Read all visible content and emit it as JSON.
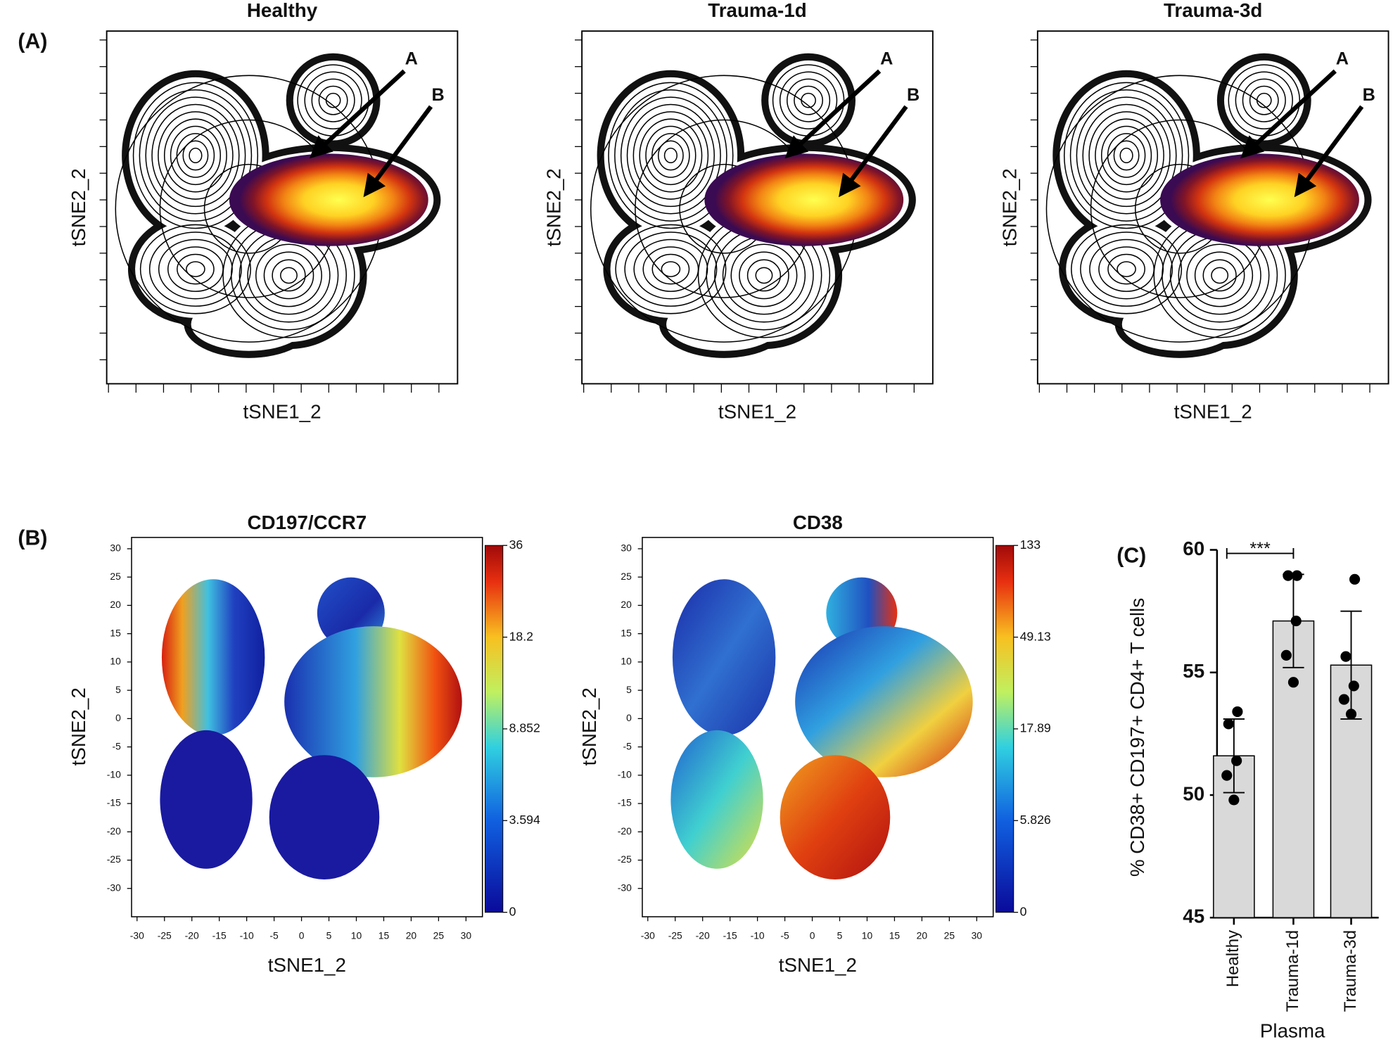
{
  "panel_labels": [
    "(A)",
    "(B)",
    "(C)"
  ],
  "panel_a": {
    "x_label": "tSNE1_2",
    "y_label": "tSNE2_2",
    "plots": [
      {
        "title": "Healthy",
        "arrow_labels": [
          "A",
          "B"
        ]
      },
      {
        "title": "Trauma-1d",
        "arrow_labels": [
          "A",
          "B"
        ]
      },
      {
        "title": "Trauma-3d",
        "arrow_labels": [
          "A",
          "B"
        ]
      }
    ]
  },
  "panel_b": {
    "x_label": "tSNE1_2",
    "y_label": "tSNE2_2",
    "xlim": [
      -31,
      33
    ],
    "ylim": [
      -35,
      32
    ],
    "xticks": [
      -30,
      -25,
      -20,
      -15,
      -10,
      -5,
      0,
      5,
      10,
      15,
      20,
      25,
      30
    ],
    "yticks": [
      -30,
      -25,
      -20,
      -15,
      -10,
      -5,
      0,
      5,
      10,
      15,
      20,
      25,
      30
    ],
    "plots": [
      {
        "title": "CD197/CCR7",
        "colorbar_ticks": [
          36,
          18.2,
          8.852,
          3.594,
          0
        ]
      },
      {
        "title": "CD38",
        "colorbar_ticks": [
          133,
          49.13,
          17.89,
          5.826,
          0
        ]
      }
    ]
  },
  "chart_data": {
    "type": "bar",
    "y_label": "% CD38+ CD197+ CD4+ T cells",
    "x_label": "Plasma",
    "categories": [
      "Healthy",
      "Trauma-1d",
      "Trauma-3d"
    ],
    "values": [
      51.6,
      57.1,
      55.3
    ],
    "errors": [
      1.5,
      1.9,
      2.2
    ],
    "points": [
      [
        53.4,
        52.9,
        51.4,
        50.8,
        49.8
      ],
      [
        58.95,
        58.95,
        57.1,
        55.7,
        54.6
      ],
      [
        58.8,
        55.65,
        54.45,
        53.9,
        53.3
      ]
    ],
    "color": "#d9d9d9",
    "point_color": "#000000",
    "ylim": [
      45,
      60
    ],
    "yticks": [
      45,
      50,
      55,
      60
    ],
    "significance": "***"
  }
}
